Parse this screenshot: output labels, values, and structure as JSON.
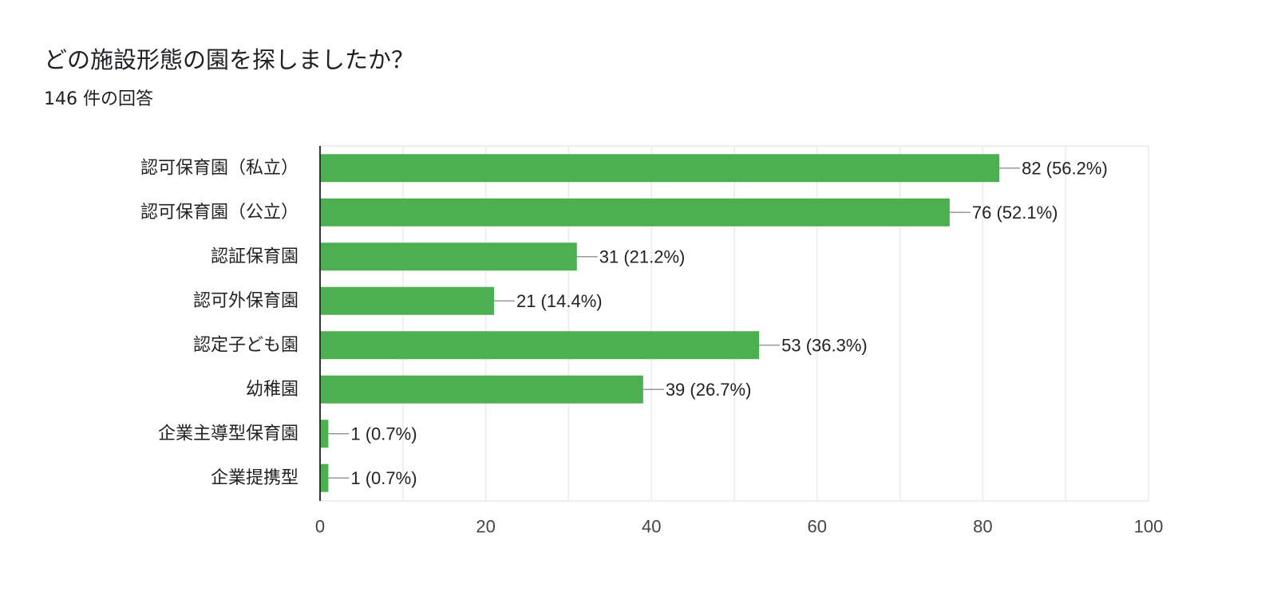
{
  "header": {
    "title": "どの施設形態の園を探しましたか？",
    "subtitle": "146 件の回答"
  },
  "colors": {
    "bar": "#4caf50",
    "gridline": "#eeeeee",
    "axis": "#333333",
    "leader": "#999999"
  },
  "chart_data": {
    "type": "bar",
    "orientation": "horizontal",
    "categories": [
      "認可保育園（私立）",
      "認可保育園（公立）",
      "認証保育園",
      "認可外保育園",
      "認定子ども園",
      "幼稚園",
      "企業主導型保育園",
      "企業提携型"
    ],
    "values": [
      82,
      76,
      31,
      21,
      53,
      39,
      1,
      1
    ],
    "data_labels": [
      "82 (56.2%)",
      "76 (52.1%)",
      "31 (21.2%)",
      "21 (14.4%)",
      "53 (36.3%)",
      "39 (26.7%)",
      "1 (0.7%)",
      "1 (0.7%)"
    ],
    "xlim": [
      0,
      100
    ],
    "x_ticks": [
      0,
      20,
      40,
      60,
      80,
      100
    ],
    "x_tick_labels": [
      "0",
      "20",
      "40",
      "60",
      "80",
      "100"
    ],
    "minor_gridlines_every": 10,
    "grid": true,
    "legend": "none"
  }
}
